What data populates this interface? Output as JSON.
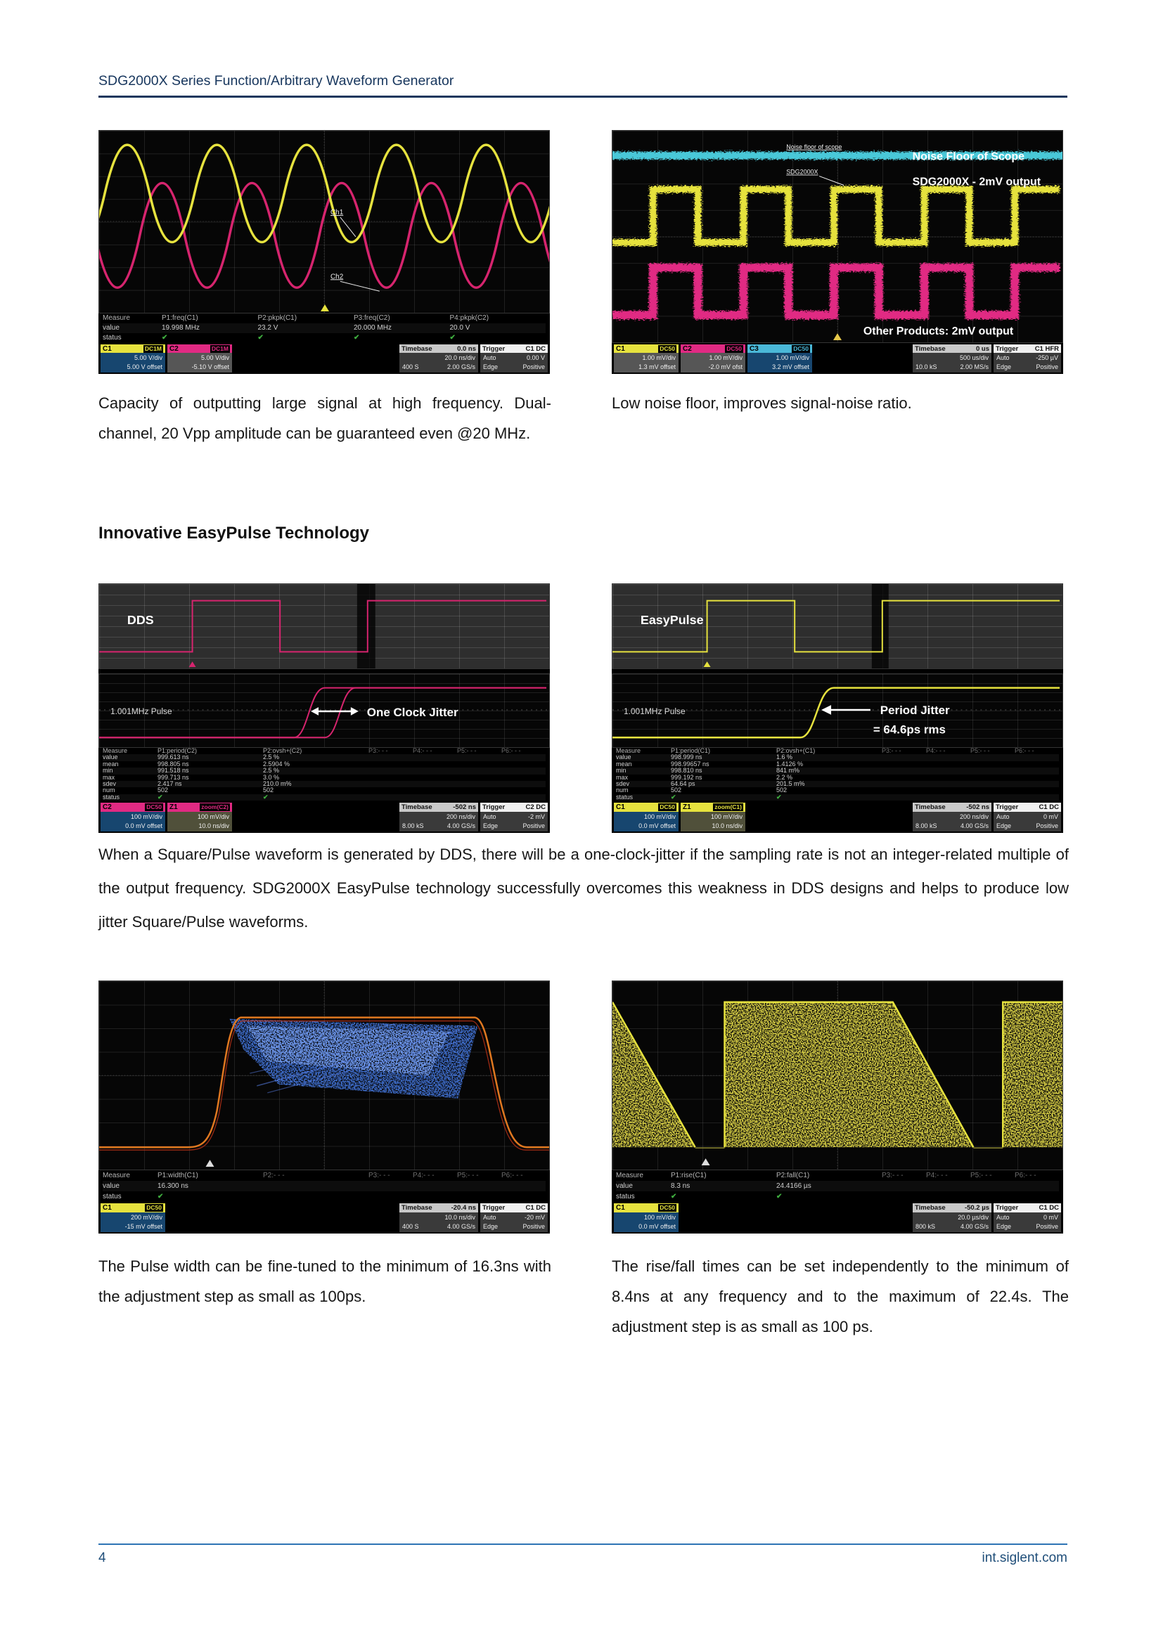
{
  "page": {
    "header": {
      "title": "SDG2000X Series Function/Arbitrary Waveform Generator"
    },
    "sections": {
      "caption_large_signal": "Capacity of outputting large signal at high frequency. Dual-channel, 20 Vpp amplitude can be guaranteed even @20 MHz.",
      "caption_noise_floor": "Low noise floor, improves signal-noise ratio.",
      "heading_easypulse": "Innovative EasyPulse Technology",
      "paragraph_easypulse": "When a Square/Pulse waveform is generated by DDS, there will be a one-clock-jitter if the sampling rate is not an integer-related multiple of the output frequency. SDG2000X EasyPulse technology successfully overcomes this weakness in DDS designs and helps to produce low jitter Square/Pulse waveforms.",
      "caption_pulse_width": "The Pulse width can be fine-tuned to the minimum of 16.3ns with the adjustment step as small as 100ps.",
      "caption_rise_fall": "The rise/fall times can be set independently to the minimum of 8.4ns at any frequency and to the maximum of 22.4s. The adjustment step is as small as 100 ps."
    },
    "footer": {
      "page_number": "4",
      "website": "int.siglent.com"
    }
  },
  "colors": {
    "header_blue": "#17365d",
    "footer_blue": "#1f4e79",
    "trace_yellow": "#e6e23e",
    "trace_magenta": "#e12a83",
    "trace_cyan": "#49c8d8",
    "trace_blue": "#3f6fd0",
    "trace_orange": "#e07820",
    "check_green": "#3fae3f"
  },
  "scopes": {
    "s1": {
      "ann": {
        "ch1": "Ch1",
        "ch2": "Ch2"
      },
      "measure": {
        "headers": [
          "Measure",
          "P1:freq(C1)",
          "P2:pkpk(C1)",
          "P3:freq(C2)",
          "P4:pkpk(C2)"
        ],
        "rows": [
          [
            "value",
            "19.998 MHz",
            "23.2 V",
            "20.000 MHz",
            "20.0 V"
          ],
          [
            "status",
            "✔",
            "✔",
            "✔",
            "✔"
          ]
        ]
      },
      "channels": [
        {
          "id": "C1",
          "chip": "DC1M",
          "l1": "5.00 V/div",
          "l2": "5.00 V offset",
          "hcol": "#e6e23e",
          "bcol": "#17466f"
        },
        {
          "id": "C2",
          "chip": "DC1M",
          "l1": "5.00 V/div",
          "l2": "-5.10 V offset",
          "hcol": "#e12a83",
          "bcol": "#565656"
        }
      ],
      "timebase": {
        "label": "Timebase",
        "value": "0.0 ns",
        "scale": "20.0 ns/div",
        "pts": "400 S",
        "rate": "2.00 GS/s"
      },
      "trigger": {
        "label": "Trigger",
        "source": "C1 DC",
        "mode": "Auto",
        "level": "0.00 V",
        "type": "Edge",
        "slope": "Positive"
      }
    },
    "s2": {
      "ann": {
        "noise_small": "Noise floor of scope",
        "noise_big": "Noise Floor of Scope",
        "sig_small": "SDG2000X",
        "sig_big": "SDG2000X - 2mV output",
        "other_big": "Other Products: 2mV output"
      },
      "channels": [
        {
          "id": "C1",
          "chip": "DC50",
          "l1": "1.00 mV/div",
          "l2": "1.3 mV offset",
          "hcol": "#e6e23e",
          "bcol": "#565656"
        },
        {
          "id": "C2",
          "chip": "DC50",
          "l1": "1.00 mV/div",
          "l2": "-2.0 mV ofst",
          "hcol": "#e12a83",
          "bcol": "#565656"
        },
        {
          "id": "C3",
          "chip": "DC50",
          "l1": "1.00 mV/div",
          "l2": "3.2 mV offset",
          "hcol": "#4ab8d8",
          "bcol": "#17466f"
        }
      ],
      "timebase": {
        "label": "Timebase",
        "value": "0 us",
        "scale": "500 us/div",
        "pts": "10.0 kS",
        "rate": "2.00 MS/s"
      },
      "trigger": {
        "label": "Trigger",
        "source": "C1 HFR",
        "mode": "Auto",
        "level": "-250 µV",
        "type": "Edge",
        "slope": "Positive"
      }
    },
    "s3": {
      "ann": {
        "panel": "DDS",
        "pulse": "1.001MHz Pulse",
        "jitter": "One Clock Jitter"
      },
      "measure": {
        "headers": [
          "Measure",
          "P1:period(C2)",
          "P2:ovsh+(C2)",
          "P3:- - -",
          "P4:- - -",
          "P5:- - -",
          "P6:- - -"
        ],
        "rows": [
          [
            "value",
            "999.613 ns",
            "2.5 %"
          ],
          [
            "mean",
            "998.805 ns",
            "2.5904 %"
          ],
          [
            "min",
            "991.518 ns",
            "2.5 %"
          ],
          [
            "max",
            "999.713 ns",
            "3.0 %"
          ],
          [
            "sdev",
            "2.417 ns",
            "210.0 m%"
          ],
          [
            "num",
            "502",
            "502"
          ],
          [
            "status",
            "✔",
            "✔"
          ]
        ]
      },
      "channels": [
        {
          "id": "C2",
          "chip": "DC50",
          "l1": "100 mV/div",
          "l2": "0.0 mV offset",
          "hcol": "#e12a83",
          "bcol": "#17466f"
        },
        {
          "id": "Z1",
          "chip": "zoom(C2)",
          "l1": "100 mV/div",
          "l2": "10.0 ns/div",
          "hcol": "#e12a83",
          "bcol": "#50503a"
        }
      ],
      "timebase": {
        "label": "Timebase",
        "value": "-502 ns",
        "scale": "200 ns/div",
        "pts": "8.00 kS",
        "rate": "4.00 GS/s"
      },
      "trigger": {
        "label": "Trigger",
        "source": "C2 DC",
        "mode": "Auto",
        "level": "-2 mV",
        "type": "Edge",
        "slope": "Positive"
      }
    },
    "s4": {
      "ann": {
        "panel": "EasyPulse",
        "pulse": "1.001MHz Pulse",
        "jitter1": "Period Jitter",
        "jitter2": "= 64.6ps rms"
      },
      "measure": {
        "headers": [
          "Measure",
          "P1:period(C1)",
          "P2:ovsh+(C1)",
          "P3:- - -",
          "P4:- - -",
          "P5:- - -",
          "P6:- - -"
        ],
        "rows": [
          [
            "value",
            "998.999 ns",
            "1.6 %"
          ],
          [
            "mean",
            "998.99657 ns",
            "1.4126 %"
          ],
          [
            "min",
            "998.810 ns",
            "841 m%"
          ],
          [
            "max",
            "999.192 ns",
            "2.2 %"
          ],
          [
            "sdev",
            "64.64 ps",
            "201.5 m%"
          ],
          [
            "num",
            "502",
            "502"
          ],
          [
            "status",
            "✔",
            "✔"
          ]
        ]
      },
      "channels": [
        {
          "id": "C1",
          "chip": "DC50",
          "l1": "100 mV/div",
          "l2": "0.0 mV offset",
          "hcol": "#e6e23e",
          "bcol": "#17466f"
        },
        {
          "id": "Z1",
          "chip": "zoom(C1)",
          "l1": "100 mV/div",
          "l2": "10.0 ns/div",
          "hcol": "#e6e23e",
          "bcol": "#50503a"
        }
      ],
      "timebase": {
        "label": "Timebase",
        "value": "-502 ns",
        "scale": "200 ns/div",
        "pts": "8.00 kS",
        "rate": "4.00 GS/s"
      },
      "trigger": {
        "label": "Trigger",
        "source": "C1 DC",
        "mode": "Auto",
        "level": "0 mV",
        "type": "Edge",
        "slope": "Positive"
      }
    },
    "s5": {
      "measure": {
        "headers": [
          "Measure",
          "P1:width(C1)",
          "P2:- - -",
          "P3:- - -",
          "P4:- - -",
          "P5:- - -",
          "P6:- - -"
        ],
        "rows": [
          [
            "value",
            "16.300 ns"
          ],
          [
            "status",
            "✔"
          ]
        ]
      },
      "channels": [
        {
          "id": "C1",
          "chip": "DC50",
          "l1": "200 mV/div",
          "l2": "-15 mV offset",
          "hcol": "#e6e23e",
          "bcol": "#17466f"
        }
      ],
      "timebase": {
        "label": "Timebase",
        "value": "-20.4 ns",
        "scale": "10.0 ns/div",
        "pts": "400 S",
        "rate": "4.00 GS/s"
      },
      "trigger": {
        "label": "Trigger",
        "source": "C1 DC",
        "mode": "Auto",
        "level": "-20 mV",
        "type": "Edge",
        "slope": "Positive"
      }
    },
    "s6": {
      "measure": {
        "headers": [
          "Measure",
          "P1:rise(C1)",
          "P2:fall(C1)",
          "P3:- - -",
          "P4:- - -",
          "P5:- - -",
          "P6:- - -"
        ],
        "rows": [
          [
            "value",
            "8.3 ns",
            "24.4166 µs"
          ],
          [
            "status",
            "✔",
            "✔"
          ]
        ]
      },
      "channels": [
        {
          "id": "C1",
          "chip": "DC50",
          "l1": "100 mV/div",
          "l2": "0.0 mV offset",
          "hcol": "#e6e23e",
          "bcol": "#17466f"
        }
      ],
      "timebase": {
        "label": "Timebase",
        "value": "-50.2 µs",
        "scale": "20.0 µs/div",
        "pts": "800 kS",
        "rate": "4.00 GS/s"
      },
      "trigger": {
        "label": "Trigger",
        "source": "C1 DC",
        "mode": "Auto",
        "level": "0 mV",
        "type": "Edge",
        "slope": "Positive"
      }
    }
  }
}
